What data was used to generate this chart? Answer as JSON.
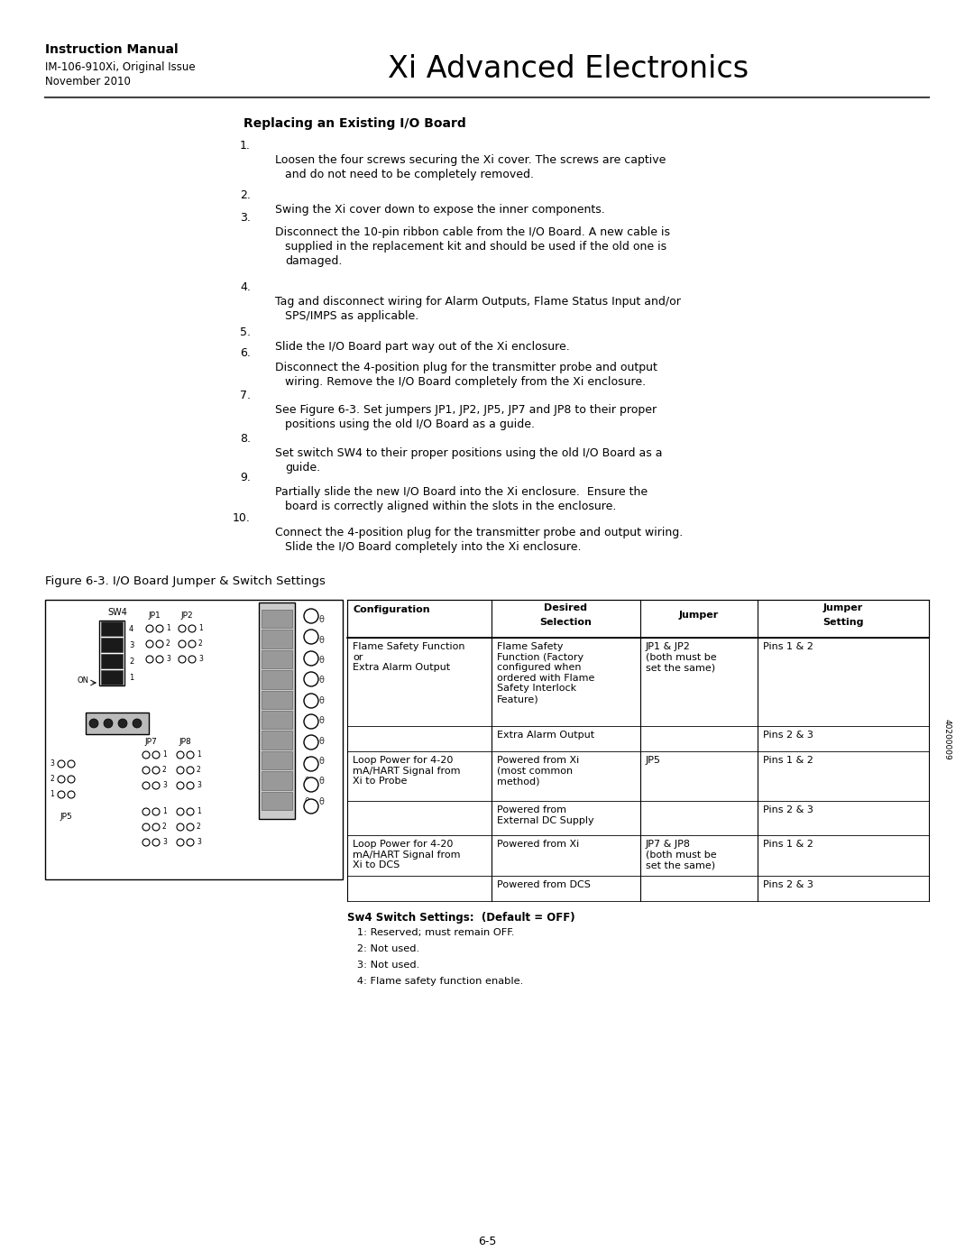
{
  "page_title": "Xi Advanced Electronics",
  "header_bold": "Instruction Manual",
  "header_line1": "IM-106-910Xi, Original Issue",
  "header_line2": "November 2010",
  "section_title": "Replacing an Existing I/O Board",
  "page_number": "6-5",
  "figure_number": "40200009",
  "figure_caption": "Figure 6-3. I/O Board Jumper & Switch Settings",
  "bg_color": "#ffffff"
}
